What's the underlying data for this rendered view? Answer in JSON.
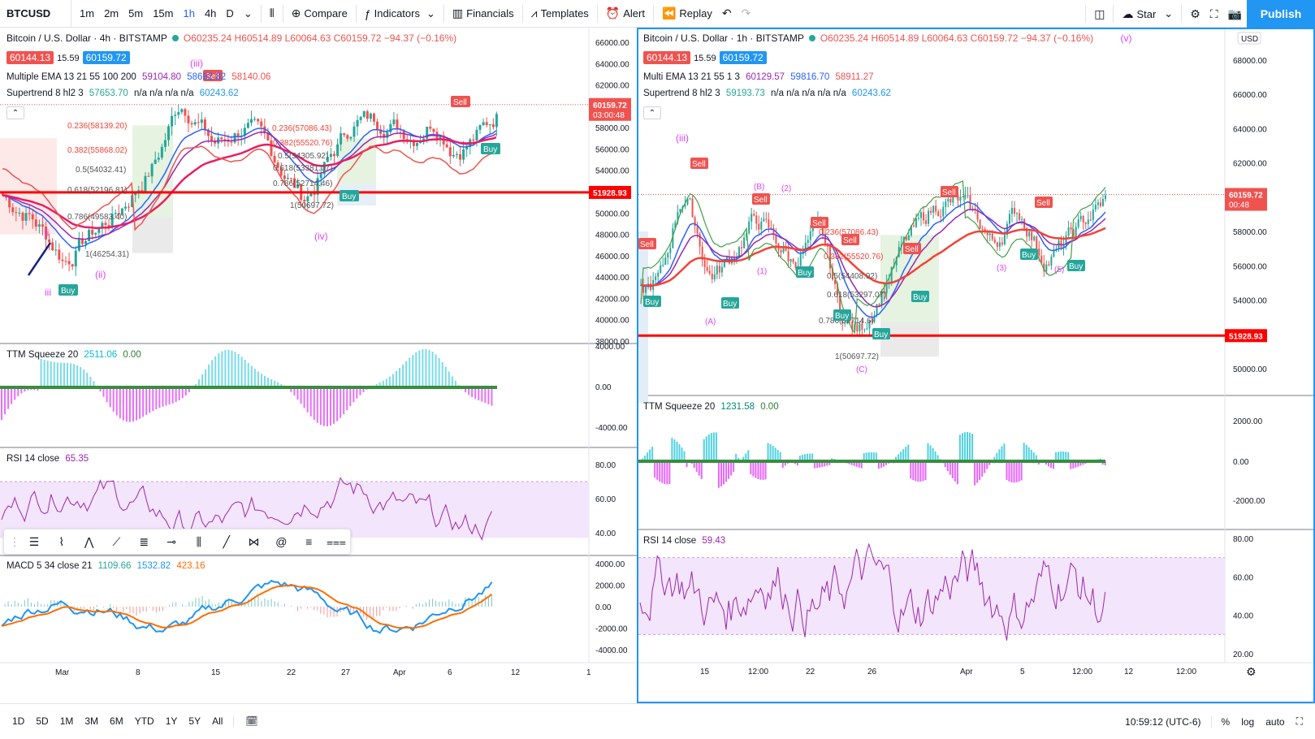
{
  "toolbar": {
    "symbol": "BTCUSD",
    "intervals": [
      "1m",
      "2m",
      "5m",
      "15m",
      "1h",
      "4h",
      "D"
    ],
    "active_interval": "1h",
    "compare": "Compare",
    "indicators": "Indicators",
    "financials": "Financials",
    "templates": "Templates",
    "alert": "Alert",
    "replay": "Replay",
    "layout_name": "Star",
    "publish": "Publish"
  },
  "left_chart": {
    "title": "Bitcoin / U.S. Dollar · 4h · BITSTAMP",
    "ohlc": "O60235.24 H60514.89 L60064.63 C60159.72 −94.37 (−0.16%)",
    "bid": "60144.13",
    "spread": "15.59",
    "ask": "60159.72",
    "ema_label": "Multiple EMA 13 21 55 100 200",
    "ema_values": [
      "59104.80",
      "58692.82",
      "58140.06"
    ],
    "supertrend_label": "Supertrend 8 hl2 3",
    "supertrend_values": "57653.70",
    "supertrend_na": "n/a n/a n/a n/a",
    "supertrend_last": "60243.62",
    "price_axis": [
      "66000.00",
      "64000.00",
      "62000.00",
      "58000.00",
      "56000.00",
      "54000.00",
      "50000.00",
      "48000.00",
      "46000.00",
      "44000.00",
      "42000.00",
      "40000.00",
      "38000.00"
    ],
    "current_price": "60159.72",
    "countdown": "03:00:48",
    "hline_price": "51928.93",
    "fib_labels": [
      "0.236(58139.20)",
      "0.382(55868.02)",
      "0.5(54032.41)",
      "0.618(52196.81)",
      "0.786(49583.40)",
      "1(46254.31)"
    ],
    "fib2_labels": [
      "0.236(57086.43)",
      "0.382(55520.76)",
      "0.5(54305.92)",
      "0.618(53381.07)",
      "0.786(52714.46)",
      "1(50697.72)"
    ],
    "wave_labels": [
      "(iii)",
      "(iv)",
      "(ii)",
      "ii",
      "iii"
    ],
    "squeeze_label": "TTM Squeeze 20",
    "squeeze_val1": "2511.06",
    "squeeze_val2": "0.00",
    "squeeze_axis": [
      "4000.00",
      "0.00",
      "-4000.00"
    ],
    "rsi_label": "RSI 14 close",
    "rsi_val": "65.35",
    "rsi_axis": [
      "80.00",
      "60.00",
      "40.00"
    ],
    "macd_label": "MACD 5 34 close 21",
    "macd_vals": [
      "1109.66",
      "1532.82",
      "423.16"
    ],
    "macd_axis": [
      "4000.00",
      "2000.00",
      "0.00",
      "-2000.00",
      "-4000.00"
    ],
    "time_axis": [
      "Mar",
      "8",
      "15",
      "22",
      "27",
      "Apr",
      "6",
      "12",
      "1"
    ]
  },
  "right_chart": {
    "title": "Bitcoin / U.S. Dollar · 1h · BITSTAMP",
    "ohlc": "O60235.24 H60514.89 L60064.63 C60159.72 −94.37 (−0.16%)",
    "wave_v": "(v)",
    "bid": "60144.13",
    "spread": "15.59",
    "ask": "60159.72",
    "ema_label": "Multi EMA 13 21 55 1 3",
    "ema_values": [
      "60129.57",
      "59816.70",
      "58911.27"
    ],
    "supertrend_label": "Supertrend 8 hl2 3",
    "supertrend_values": "59193.73",
    "supertrend_na": "n/a n/a n/a n/a n/a",
    "supertrend_last": "60243.62",
    "usd": "USD",
    "price_axis": [
      "68000.00",
      "66000.00",
      "64000.00",
      "62000.00",
      "58000.00",
      "56000.00",
      "54000.00",
      "52000.00",
      "50000.00"
    ],
    "current_price": "60159.72",
    "countdown": "00:48",
    "hline_price": "51928.93",
    "fib_labels": [
      "0.236(57086.43)",
      "0.382(55520.76)",
      "0.5(54408.92)",
      "0.618(53297.07)",
      "0.786(52714.6)",
      "1(50697.72)"
    ],
    "wave_labels": [
      "(iii)",
      "(A)",
      "(B)",
      "(C)",
      "(1)",
      "(2)",
      "(3)",
      "(5)"
    ],
    "squeeze_label": "TTM Squeeze 20",
    "squeeze_val1": "1231.58",
    "squeeze_val2": "0.00",
    "squeeze_axis": [
      "2000.00",
      "0.00",
      "-2000.00"
    ],
    "rsi_label": "RSI 14 close",
    "rsi_val": "59.43",
    "rsi_axis": [
      "80.00",
      "60.00",
      "40.00",
      "20.00"
    ],
    "time_axis": [
      "15",
      "12:00",
      "22",
      "26",
      "Apr",
      "5",
      "12:00",
      "12",
      "12:00"
    ]
  },
  "bottombar": {
    "ranges": [
      "1D",
      "5D",
      "1M",
      "3M",
      "6M",
      "YTD",
      "1Y",
      "5Y",
      "All"
    ],
    "clock": "10:59:12 (UTC-6)",
    "percent": "%",
    "log": "log",
    "auto": "auto"
  },
  "colors": {
    "up": "#26a69a",
    "down": "#ef5350",
    "accent": "#2196f3",
    "hline": "#ff0000",
    "rsi_band": "#f3e5fb",
    "wave": "#e040fb"
  }
}
